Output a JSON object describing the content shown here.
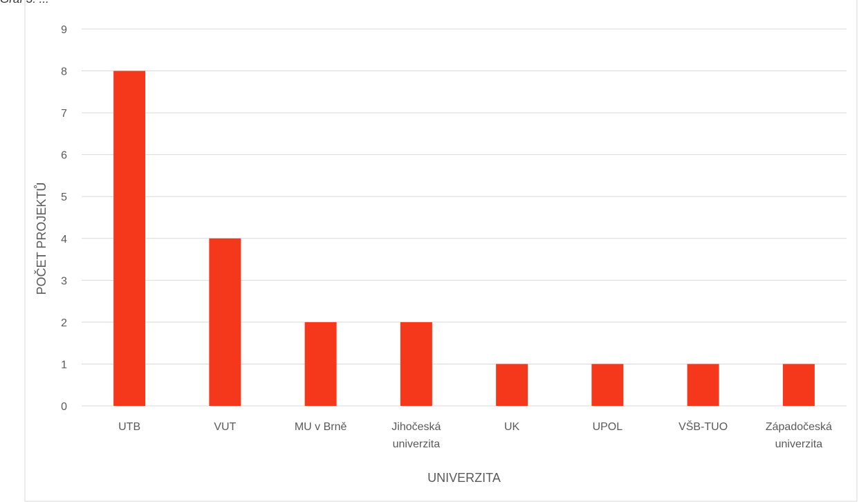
{
  "caption": "Graf 3: ...",
  "chart_data": {
    "type": "bar",
    "categories": [
      [
        "UTB"
      ],
      [
        "VUT"
      ],
      [
        "MU v Brně"
      ],
      [
        "Jihočeská",
        "univerzita"
      ],
      [
        "UK"
      ],
      [
        "UPOL"
      ],
      [
        "VŠB-TUO"
      ],
      [
        "Západočeská",
        "univerzita"
      ]
    ],
    "values": [
      8,
      4,
      2,
      2,
      1,
      1,
      1,
      1
    ],
    "xlabel": "UNIVERZITA",
    "ylabel": "POČET PROJEKTŮ",
    "ylim": [
      0,
      9
    ],
    "yticks": [
      "0",
      "1",
      "2",
      "3",
      "4",
      "5",
      "6",
      "7",
      "8",
      "9"
    ],
    "grid": true,
    "bar_color": "#f5381c",
    "grid_color": "#d9d9d9"
  }
}
